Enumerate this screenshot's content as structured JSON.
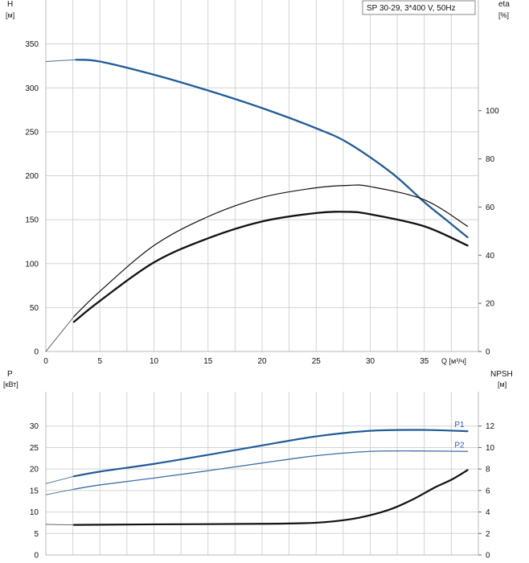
{
  "legend_box": "SP 30-29, 3*400 V, 50Hz",
  "colors": {
    "grid": "#d3d3d3",
    "frame": "#b8b8b8",
    "blue": "#1f5c99",
    "black": "#111111",
    "series_label": "#2a5ea8"
  },
  "chart_data": [
    {
      "type": "line",
      "ylabel": "H",
      "ylabel_unit": "[м]",
      "y2label": "eta",
      "y2label_unit": "[%]",
      "xlabel": "Q [м³/ч]",
      "xlim": [
        0,
        40
      ],
      "ylim": [
        0,
        400
      ],
      "y2lim": [
        0,
        146
      ],
      "xticks": [
        0,
        5,
        10,
        15,
        20,
        25,
        30,
        35
      ],
      "yticks": [
        0,
        50,
        100,
        150,
        200,
        250,
        300,
        350
      ],
      "y2ticks": [
        0,
        20,
        40,
        60,
        80,
        100
      ],
      "grid": true,
      "series": [
        {
          "axis": "left",
          "color": "#4a6f96",
          "width": 1.0,
          "x": [
            0,
            2.8
          ],
          "y": [
            330,
            332
          ]
        },
        {
          "axis": "left",
          "color": "#1f5c99",
          "width": 2.3,
          "x": [
            2.8,
            5,
            10,
            15,
            20,
            25,
            28,
            32,
            35,
            37,
            39
          ],
          "y": [
            332,
            330,
            315,
            297,
            277,
            254,
            237,
            203,
            170,
            150,
            130
          ]
        },
        {
          "axis": "right",
          "color": "#555555",
          "width": 0.9,
          "x": [
            0,
            2.6
          ],
          "y": [
            0,
            14.5
          ]
        },
        {
          "axis": "right",
          "color": "#111111",
          "width": 1.2,
          "x": [
            2.6,
            5,
            10,
            15,
            20,
            25,
            28,
            30,
            35,
            39
          ],
          "y": [
            14.5,
            25,
            44,
            56,
            64,
            68,
            69,
            68.5,
            63,
            52
          ]
        },
        {
          "axis": "right",
          "color": "#111111",
          "width": 2.3,
          "x": [
            2.6,
            5,
            10,
            15,
            20,
            25,
            28,
            30,
            35,
            39
          ],
          "y": [
            12.3,
            21,
            37,
            47,
            54,
            57.5,
            58,
            57,
            52,
            44
          ]
        }
      ]
    },
    {
      "type": "line",
      "ylabel": "P",
      "ylabel_unit": "[кВт]",
      "y2label": "NPSH",
      "y2label_unit": "[м]",
      "xlim": [
        0,
        40
      ],
      "ylim": [
        0,
        38
      ],
      "y2lim": [
        0,
        15.2
      ],
      "yticks": [
        0,
        5,
        10,
        15,
        20,
        25,
        30
      ],
      "y2ticks": [
        0,
        2,
        4,
        6,
        8,
        10,
        12
      ],
      "grid": true,
      "series": [
        {
          "axis": "left",
          "color": "#4a6f96",
          "width": 0.9,
          "x": [
            0,
            2.6
          ],
          "y": [
            16.6,
            18.3
          ]
        },
        {
          "axis": "left",
          "name": "P1",
          "color": "#1f5c99",
          "width": 2.2,
          "x": [
            2.6,
            5,
            10,
            15,
            20,
            25,
            30,
            35,
            39
          ],
          "y": [
            18.3,
            19.4,
            21.2,
            23.3,
            25.5,
            27.6,
            28.9,
            29.1,
            28.8
          ]
        },
        {
          "axis": "left",
          "color": "#4a6f96",
          "width": 0.9,
          "x": [
            0,
            2.6
          ],
          "y": [
            14,
            15.3
          ]
        },
        {
          "axis": "left",
          "name": "P2",
          "color": "#3a6ea8",
          "width": 1.3,
          "x": [
            2.6,
            5,
            10,
            15,
            20,
            25,
            30,
            35,
            39
          ],
          "y": [
            15.3,
            16.3,
            17.9,
            19.6,
            21.4,
            23.1,
            24.1,
            24.2,
            24.1
          ]
        },
        {
          "axis": "right",
          "color": "#555555",
          "width": 0.9,
          "x": [
            0,
            2.6
          ],
          "y": [
            2.85,
            2.8
          ]
        },
        {
          "axis": "right",
          "color": "#111111",
          "width": 2.2,
          "x": [
            2.6,
            10,
            20,
            25,
            28,
            30,
            32,
            34,
            36,
            37.5,
            39
          ],
          "y": [
            2.8,
            2.85,
            2.9,
            3.0,
            3.3,
            3.7,
            4.3,
            5.2,
            6.3,
            7.0,
            7.9
          ]
        }
      ]
    }
  ]
}
